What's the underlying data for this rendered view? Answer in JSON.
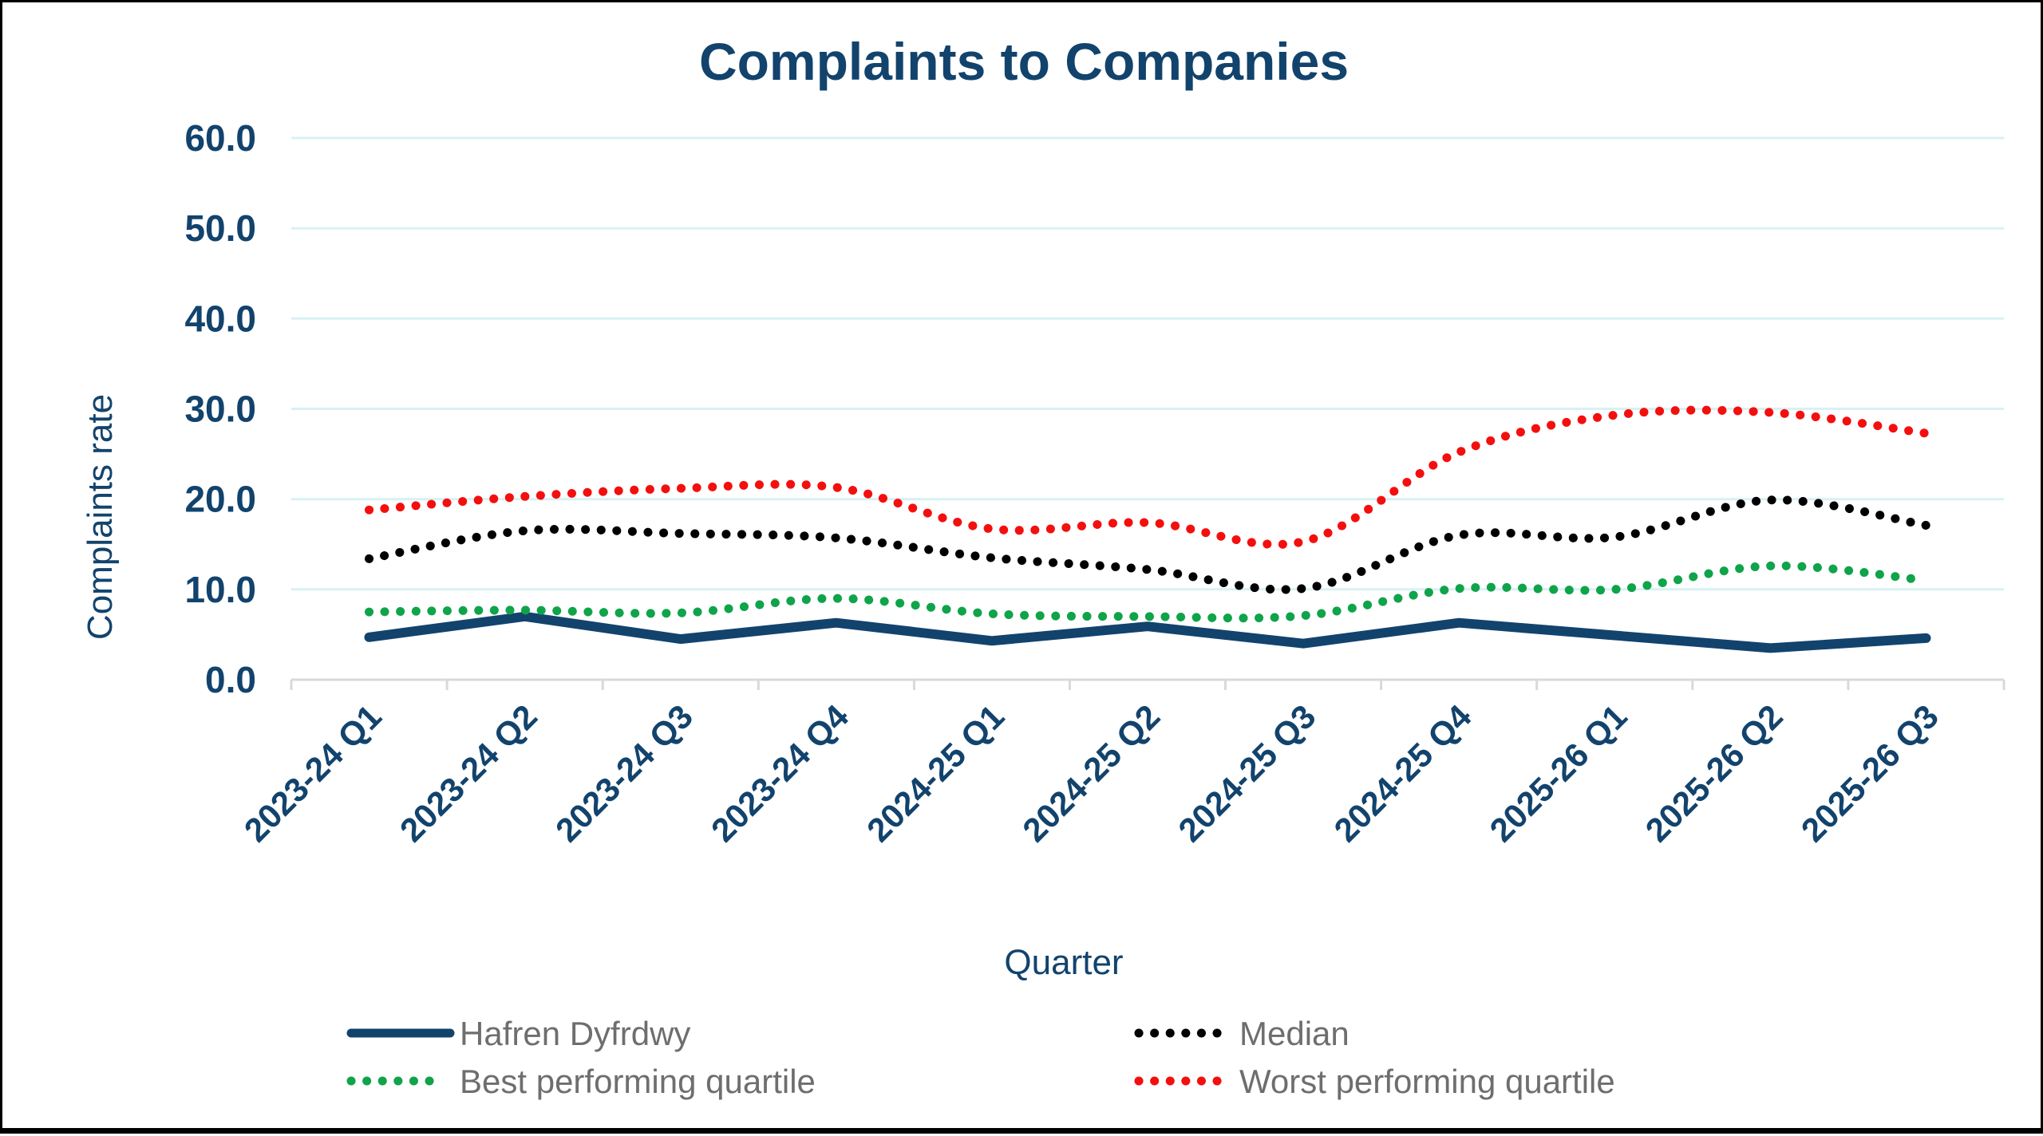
{
  "title": "Complaints to Companies",
  "axes": {
    "y_label": "Complaints rate",
    "x_label": "Quarter",
    "y_ticks": [
      "0.0",
      "10.0",
      "20.0",
      "30.0",
      "40.0",
      "50.0",
      "60.0"
    ]
  },
  "chart_data": {
    "type": "line",
    "title": "Complaints to Companies",
    "xlabel": "Quarter",
    "ylabel": "Complaints rate",
    "ylim": [
      0,
      60
    ],
    "y_tick_step": 10,
    "grid": "horizontal-gridlines-on",
    "legend_position": "bottom-two-columns",
    "categories": [
      "2023-24 Q1",
      "2023-24 Q2",
      "2023-24 Q3",
      "2023-24 Q4",
      "2024-25 Q1",
      "2024-25 Q2",
      "2024-25 Q3",
      "2024-25 Q4",
      "2025-26 Q1",
      "2025-26 Q2",
      "2025-26 Q3"
    ],
    "series": [
      {
        "name": "Hafren Dyfrdwy",
        "style": "solid",
        "color": "#12436D",
        "values": [
          4.7,
          7.0,
          4.5,
          6.3,
          4.3,
          5.9,
          4.0,
          6.3,
          4.9,
          3.5,
          4.6
        ]
      },
      {
        "name": "Median",
        "style": "dotted",
        "color": "#000000",
        "values": [
          13.4,
          16.5,
          16.2,
          15.7,
          13.5,
          12.2,
          10.1,
          16.0,
          15.8,
          19.9,
          17.1
        ]
      },
      {
        "name": "Best performing quartile",
        "style": "dotted",
        "color": "#0FA44A",
        "values": [
          7.5,
          7.7,
          7.4,
          9.0,
          7.3,
          7.0,
          7.1,
          10.1,
          10.0,
          12.6,
          11.0
        ]
      },
      {
        "name": "Worst performing quartile",
        "style": "dotted",
        "color": "#F40F0F",
        "values": [
          18.8,
          20.3,
          21.2,
          21.3,
          16.7,
          17.4,
          15.3,
          25.2,
          29.3,
          29.6,
          27.3
        ]
      }
    ]
  },
  "colors": {
    "title": "#12436D",
    "axis_text": "#12436D",
    "tick_text": "#12436D",
    "legend_text": "#6E6E6E",
    "gridline": "#D9F1F4",
    "axis_line": "#D9D9D9",
    "background": "#FFFFFF",
    "border": "#000000"
  }
}
